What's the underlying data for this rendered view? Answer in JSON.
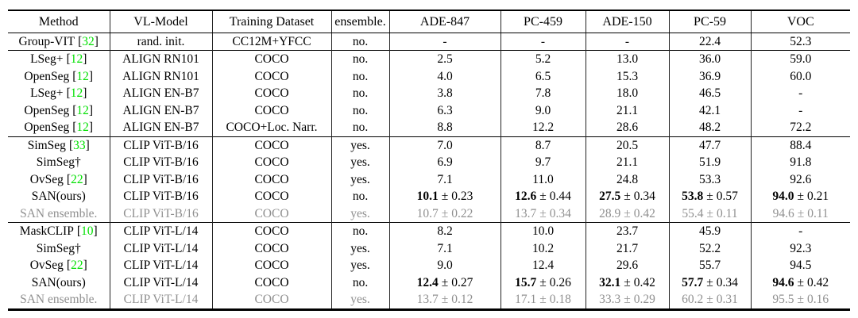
{
  "meta": {
    "pm_symbol": "±",
    "citation_brackets": [
      "[",
      "]"
    ]
  },
  "colors": {
    "citation_green": "#00e000",
    "muted_gray": "#909090"
  },
  "table": {
    "columns": [
      "Method",
      "VL-Model",
      "Training Dataset",
      "ensemble.",
      "ADE-847",
      "PC-459",
      "ADE-150",
      "PC-59",
      "VOC"
    ],
    "rows": [
      {
        "method": {
          "label": "Group-VIT",
          "cite": "32"
        },
        "vl_model": "rand. init.",
        "dataset": "CC12M+YFCC",
        "ensemble": "no.",
        "scores": [
          "-",
          "-",
          "-",
          "22.4",
          "52.3"
        ],
        "rule_above": false,
        "muted": false
      },
      {
        "method": {
          "label": "LSeg+",
          "cite": "12"
        },
        "vl_model": "ALIGN RN101",
        "dataset": "COCO",
        "ensemble": "no.",
        "scores": [
          "2.5",
          "5.2",
          "13.0",
          "36.0",
          "59.0"
        ],
        "rule_above": true,
        "muted": false
      },
      {
        "method": {
          "label": "OpenSeg",
          "cite": "12"
        },
        "vl_model": "ALIGN RN101",
        "dataset": "COCO",
        "ensemble": "no.",
        "scores": [
          "4.0",
          "6.5",
          "15.3",
          "36.9",
          "60.0"
        ],
        "rule_above": false,
        "muted": false
      },
      {
        "method": {
          "label": "LSeg+",
          "cite": "12"
        },
        "vl_model": "ALIGN EN-B7",
        "dataset": "COCO",
        "ensemble": "no.",
        "scores": [
          "3.8",
          "7.8",
          "18.0",
          "46.5",
          "-"
        ],
        "rule_above": false,
        "muted": false
      },
      {
        "method": {
          "label": "OpenSeg",
          "cite": "12"
        },
        "vl_model": "ALIGN EN-B7",
        "dataset": "COCO",
        "ensemble": "no.",
        "scores": [
          "6.3",
          "9.0",
          "21.1",
          "42.1",
          "-"
        ],
        "rule_above": false,
        "muted": false
      },
      {
        "method": {
          "label": "OpenSeg",
          "cite": "12"
        },
        "vl_model": "ALIGN EN-B7",
        "dataset": "COCO+Loc. Narr.",
        "ensemble": "no.",
        "scores": [
          "8.8",
          "12.2",
          "28.6",
          "48.2",
          "72.2"
        ],
        "rule_above": false,
        "muted": false
      },
      {
        "method": {
          "label": "SimSeg",
          "cite": "33"
        },
        "vl_model": "CLIP ViT-B/16",
        "dataset": "COCO",
        "ensemble": "yes.",
        "scores": [
          "7.0",
          "8.7",
          "20.5",
          "47.7",
          "88.4"
        ],
        "rule_above": true,
        "muted": false
      },
      {
        "method": {
          "label": "SimSeg†",
          "cite": null
        },
        "vl_model": "CLIP ViT-B/16",
        "dataset": "COCO",
        "ensemble": "yes.",
        "scores": [
          "6.9",
          "9.7",
          "21.1",
          "51.9",
          "91.8"
        ],
        "rule_above": false,
        "muted": false
      },
      {
        "method": {
          "label": "OvSeg",
          "cite": "22"
        },
        "vl_model": "CLIP ViT-B/16",
        "dataset": "COCO",
        "ensemble": "yes.",
        "scores": [
          "7.1",
          "11.0",
          "24.8",
          "53.3",
          "92.6"
        ],
        "rule_above": false,
        "muted": false
      },
      {
        "method": {
          "label": "SAN(ours)",
          "cite": null
        },
        "vl_model": "CLIP ViT-B/16",
        "dataset": "COCO",
        "ensemble": "no.",
        "scores": [
          {
            "b": "10.1",
            "pm": "0.23"
          },
          {
            "b": "12.6",
            "pm": "0.44"
          },
          {
            "b": "27.5",
            "pm": "0.34"
          },
          {
            "b": "53.8",
            "pm": "0.57"
          },
          {
            "b": "94.0",
            "pm": "0.21"
          }
        ],
        "rule_above": false,
        "muted": false
      },
      {
        "method": {
          "label": "SAN ensemble.",
          "cite": null
        },
        "vl_model": "CLIP ViT-B/16",
        "dataset": "COCO",
        "ensemble": "yes.",
        "scores": [
          {
            "b": "10.7",
            "pm": "0.22"
          },
          {
            "b": "13.7",
            "pm": "0.34"
          },
          {
            "b": "28.9",
            "pm": "0.42"
          },
          {
            "b": "55.4",
            "pm": "0.11"
          },
          {
            "b": "94.6",
            "pm": "0.11"
          }
        ],
        "rule_above": false,
        "muted": true
      },
      {
        "method": {
          "label": "MaskCLIP",
          "cite": "10"
        },
        "vl_model": "CLIP ViT-L/14",
        "dataset": "COCO",
        "ensemble": "no.",
        "scores": [
          "8.2",
          "10.0",
          "23.7",
          "45.9",
          "-"
        ],
        "rule_above": true,
        "muted": false
      },
      {
        "method": {
          "label": "SimSeg†",
          "cite": null
        },
        "vl_model": "CLIP ViT-L/14",
        "dataset": "COCO",
        "ensemble": "yes.",
        "scores": [
          "7.1",
          "10.2",
          "21.7",
          "52.2",
          "92.3"
        ],
        "rule_above": false,
        "muted": false
      },
      {
        "method": {
          "label": "OvSeg",
          "cite": "22"
        },
        "vl_model": "CLIP ViT-L/14",
        "dataset": "COCO",
        "ensemble": "yes.",
        "scores": [
          "9.0",
          "12.4",
          "29.6",
          "55.7",
          "94.5"
        ],
        "rule_above": false,
        "muted": false
      },
      {
        "method": {
          "label": "SAN(ours)",
          "cite": null
        },
        "vl_model": "CLIP ViT-L/14",
        "dataset": "COCO",
        "ensemble": "no.",
        "scores": [
          {
            "b": "12.4",
            "pm": "0.27"
          },
          {
            "b": "15.7",
            "pm": "0.26"
          },
          {
            "b": "32.1",
            "pm": "0.42"
          },
          {
            "b": "57.7",
            "pm": "0.34"
          },
          {
            "b": "94.6",
            "pm": "0.42"
          }
        ],
        "rule_above": false,
        "muted": false
      },
      {
        "method": {
          "label": "SAN ensemble.",
          "cite": null
        },
        "vl_model": "CLIP ViT-L/14",
        "dataset": "COCO",
        "ensemble": "yes.",
        "scores": [
          {
            "b": "13.7",
            "pm": "0.12"
          },
          {
            "b": "17.1",
            "pm": "0.18"
          },
          {
            "b": "33.3",
            "pm": "0.29"
          },
          {
            "b": "60.2",
            "pm": "0.31"
          },
          {
            "b": "95.5",
            "pm": "0.16"
          }
        ],
        "rule_above": false,
        "muted": true
      }
    ]
  }
}
